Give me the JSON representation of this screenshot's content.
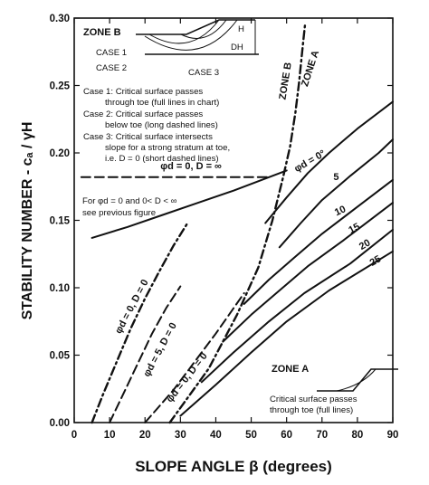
{
  "chart_data": {
    "type": "line",
    "title": "",
    "xlabel": "SLOPE ANGLE  β (degrees)",
    "ylabel": "STABILITY NUMBER -  cₐ / γH",
    "xlim": [
      0,
      90
    ],
    "ylim": [
      0,
      0.3
    ],
    "x_ticks": [
      "0",
      "10",
      "20",
      "30",
      "40",
      "50",
      "60",
      "70",
      "80",
      "90"
    ],
    "y_ticks": [
      "0.00",
      "0.05",
      "0.10",
      "0.15",
      "0.20",
      "0.25",
      "0.30"
    ],
    "grid": false,
    "series": [
      {
        "name": "φd = 0°",
        "style": "solid",
        "x": [
          54,
          60,
          66,
          72,
          80,
          90
        ],
        "y": [
          0.148,
          0.167,
          0.185,
          0.2,
          0.218,
          0.238
        ]
      },
      {
        "name": "5",
        "style": "solid",
        "x": [
          58,
          64,
          70,
          78,
          86,
          90
        ],
        "y": [
          0.13,
          0.148,
          0.165,
          0.183,
          0.2,
          0.21
        ]
      },
      {
        "name": "10",
        "style": "solid",
        "x": [
          48,
          55,
          62,
          70,
          80,
          90
        ],
        "y": [
          0.088,
          0.106,
          0.122,
          0.14,
          0.16,
          0.18
        ]
      },
      {
        "name": "15",
        "style": "solid",
        "x": [
          42,
          50,
          58,
          66,
          76,
          90
        ],
        "y": [
          0.06,
          0.08,
          0.098,
          0.116,
          0.135,
          0.163
        ]
      },
      {
        "name": "20",
        "style": "solid",
        "x": [
          36,
          45,
          55,
          65,
          78,
          90
        ],
        "y": [
          0.03,
          0.052,
          0.075,
          0.096,
          0.118,
          0.143
        ]
      },
      {
        "name": "25",
        "style": "solid",
        "x": [
          30,
          40,
          50,
          60,
          72,
          90
        ],
        "y": [
          0.005,
          0.028,
          0.052,
          0.075,
          0.098,
          0.127
        ]
      },
      {
        "name": "φd = 0, D = ∞ (lower)",
        "style": "solid",
        "x": [
          5,
          15,
          25,
          35,
          45,
          53,
          60
        ],
        "y": [
          0.137,
          0.145,
          0.154,
          0.163,
          0.172,
          0.18,
          0.187
        ]
      },
      {
        "name": "φd = 0, D = ∞",
        "style": "long-dash",
        "x": [
          2,
          20,
          40,
          55
        ],
        "y": [
          0.182,
          0.182,
          0.182,
          0.182
        ]
      },
      {
        "name": "φd = 0, D = 0",
        "style": "dash-dot",
        "x": [
          5,
          8,
          12,
          16,
          20,
          24,
          28,
          32
        ],
        "y": [
          0.0,
          0.02,
          0.045,
          0.07,
          0.092,
          0.112,
          0.131,
          0.148
        ]
      },
      {
        "name": "φd = 5, D = 0",
        "style": "long-dash",
        "x": [
          10,
          14,
          18,
          22,
          26,
          30
        ],
        "y": [
          0.0,
          0.022,
          0.044,
          0.066,
          0.085,
          0.101
        ]
      },
      {
        "name": "φd = 0, D = 0 (right)",
        "style": "long-dash",
        "x": [
          20,
          24,
          28,
          32,
          36,
          40,
          44,
          48
        ],
        "y": [
          0.0,
          0.012,
          0.024,
          0.038,
          0.052,
          0.066,
          0.081,
          0.096
        ]
      },
      {
        "name": "ZONE B boundary",
        "style": "dash-dot",
        "x": [
          27,
          38,
          46,
          52,
          56,
          59,
          61,
          62.5,
          63.5,
          64.2,
          64.8,
          65.2
        ],
        "y": [
          0.0,
          0.04,
          0.08,
          0.115,
          0.15,
          0.182,
          0.205,
          0.23,
          0.252,
          0.27,
          0.285,
          0.295
        ]
      }
    ],
    "curve_labels": [
      {
        "text": "ZONE B",
        "x": 60.5,
        "y": 0.253,
        "rot": -81
      },
      {
        "text": "ZONE A",
        "x": 67.5,
        "y": 0.262,
        "rot": -72
      },
      {
        "text": "φd = 0°",
        "x": 67,
        "y": 0.192,
        "rot": -30
      },
      {
        "text": "5",
        "x": 74,
        "y": 0.18,
        "rot": 0
      },
      {
        "text": "10",
        "x": 75.5,
        "y": 0.155,
        "rot": -25
      },
      {
        "text": "15",
        "x": 79.5,
        "y": 0.142,
        "rot": -28
      },
      {
        "text": "20",
        "x": 82.5,
        "y": 0.13,
        "rot": -30
      },
      {
        "text": "25",
        "x": 85.5,
        "y": 0.118,
        "rot": -30
      },
      {
        "text": "φd = 0, D = ∞",
        "x": 33,
        "y": 0.188,
        "rot": 0
      },
      {
        "text": "φd = 0, D = 0",
        "x": 17,
        "y": 0.085,
        "rot": -62
      },
      {
        "text": "φd = 5, D = 0",
        "x": 25,
        "y": 0.053,
        "rot": -62
      },
      {
        "text": "φd = 0, D = 0",
        "x": 32.5,
        "y": 0.032,
        "rot": -52
      }
    ],
    "annotations": {
      "zone_b_title": "ZONE B",
      "case1": "CASE 1",
      "case2": "CASE 2",
      "case3": "CASE 3",
      "h": "H",
      "dh": "DH",
      "notes": [
        "Case 1:  Critical surface passes",
        "through toe (full lines in chart)",
        "Case 2:  Critical surface passes",
        "below toe  (long dashed lines)",
        "Case 3:  Critical surface intersects",
        "slope for a strong stratum at toe,",
        "i.e. D = 0  (short dashed lines)"
      ],
      "d_note": [
        "For φd = 0 and 0< D < ∞",
        "see previous figure"
      ],
      "zone_a_title": "ZONE A",
      "zone_a_note": [
        "Critical surface passes",
        "through toe  (full lines)"
      ]
    }
  }
}
